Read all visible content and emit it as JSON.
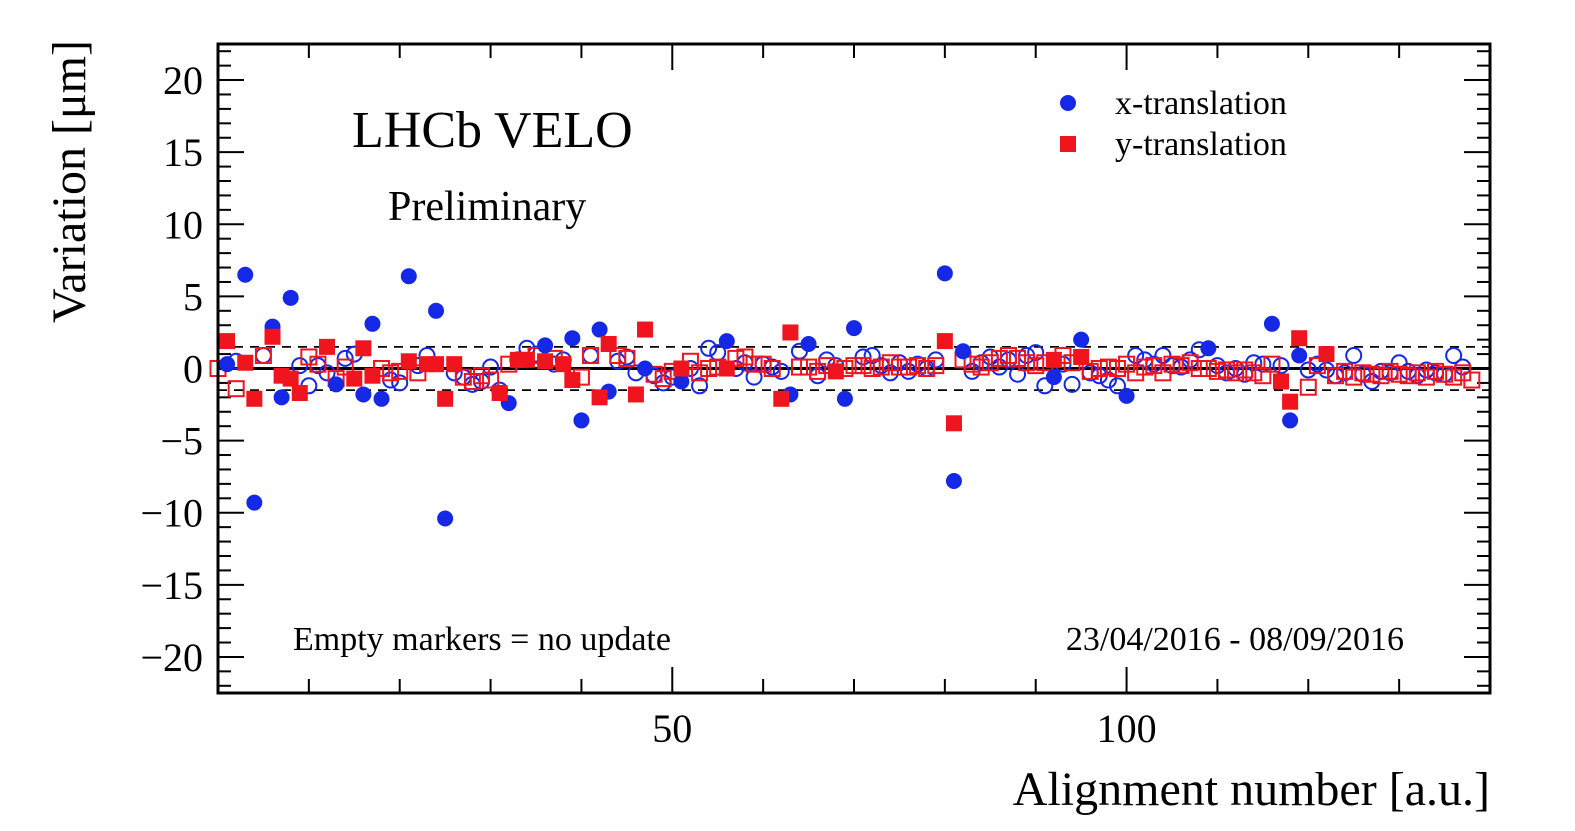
{
  "chart_data": {
    "type": "scatter",
    "title": "",
    "xlabel": "Alignment number [a.u.]",
    "ylabel": "Variation [μm]",
    "xlim": [
      0,
      140
    ],
    "ylim": [
      -22.5,
      22.5
    ],
    "x_ticks": [
      50,
      100
    ],
    "y_ticks": [
      -20,
      -15,
      -10,
      -5,
      0,
      5,
      10,
      15,
      20
    ],
    "y_tick_labels": [
      "−20",
      "−15",
      "−10",
      "−5",
      "0",
      "5",
      "10",
      "15",
      "20"
    ],
    "reference_lines": {
      "solid": [
        0
      ],
      "dashed": [
        -1.5,
        1.5
      ]
    },
    "legend": {
      "position": "top-right"
    },
    "annotations": {
      "experiment": "LHCb VELO",
      "status": "Preliminary",
      "marker_note": "Empty markers = no update",
      "date_range": "23/04/2016 - 08/09/2016"
    },
    "colors": {
      "x": "#1428e6",
      "y": "#f0141e"
    },
    "series": [
      {
        "name": "x-translation",
        "marker": "circle",
        "color": "#1428e6",
        "filled": [
          [
            1,
            0.3
          ],
          [
            3,
            6.5
          ],
          [
            4,
            -9.3
          ],
          [
            6,
            2.9
          ],
          [
            7,
            -2.0
          ],
          [
            8,
            4.9
          ],
          [
            13,
            -1.1
          ],
          [
            16,
            -1.8
          ],
          [
            17,
            3.1
          ],
          [
            18,
            -2.1
          ],
          [
            21,
            6.4
          ],
          [
            24,
            4.0
          ],
          [
            25,
            -10.4
          ],
          [
            32,
            -2.4
          ],
          [
            36,
            1.6
          ],
          [
            39,
            2.1
          ],
          [
            40,
            -3.6
          ],
          [
            42,
            2.7
          ],
          [
            43,
            -1.6
          ],
          [
            47,
            0.0
          ],
          [
            51,
            -0.9
          ],
          [
            56,
            1.9
          ],
          [
            63,
            -1.8
          ],
          [
            65,
            1.7
          ],
          [
            69,
            -2.1
          ],
          [
            70,
            2.8
          ],
          [
            80,
            6.6
          ],
          [
            81,
            -7.8
          ],
          [
            82,
            1.2
          ],
          [
            92,
            -0.6
          ],
          [
            95,
            2.0
          ],
          [
            100,
            -1.9
          ],
          [
            109,
            1.4
          ],
          [
            116,
            3.1
          ],
          [
            118,
            -3.6
          ],
          [
            119,
            0.9
          ]
        ],
        "open": [
          [
            2,
            0.5
          ],
          [
            5,
            0.9
          ],
          [
            9,
            0.2
          ],
          [
            10,
            -1.2
          ],
          [
            11,
            0.2
          ],
          [
            12,
            -0.3
          ],
          [
            14,
            0.7
          ],
          [
            15,
            1.0
          ],
          [
            19,
            -0.8
          ],
          [
            20,
            -1.0
          ],
          [
            22,
            0.2
          ],
          [
            23,
            0.9
          ],
          [
            26,
            -0.3
          ],
          [
            27,
            -0.6
          ],
          [
            28,
            -1.1
          ],
          [
            29,
            -0.9
          ],
          [
            30,
            0.1
          ],
          [
            31,
            -1.5
          ],
          [
            33,
            0.6
          ],
          [
            34,
            1.4
          ],
          [
            35,
            1.0
          ],
          [
            37,
            0.3
          ],
          [
            38,
            0.6
          ],
          [
            41,
            0.9
          ],
          [
            44,
            0.5
          ],
          [
            45,
            0.8
          ],
          [
            46,
            -0.3
          ],
          [
            48,
            -0.5
          ],
          [
            49,
            -1.0
          ],
          [
            50,
            -0.6
          ],
          [
            52,
            0.0
          ],
          [
            53,
            -1.2
          ],
          [
            54,
            1.4
          ],
          [
            55,
            1.1
          ],
          [
            57,
            0.0
          ],
          [
            58,
            0.4
          ],
          [
            59,
            -0.6
          ],
          [
            60,
            0.3
          ],
          [
            61,
            0.1
          ],
          [
            62,
            -0.2
          ],
          [
            64,
            1.2
          ],
          [
            66,
            -0.5
          ],
          [
            67,
            0.6
          ],
          [
            68,
            0.2
          ],
          [
            71,
            0.8
          ],
          [
            72,
            0.9
          ],
          [
            73,
            0.2
          ],
          [
            74,
            -0.3
          ],
          [
            75,
            0.4
          ],
          [
            76,
            -0.2
          ],
          [
            77,
            0.3
          ],
          [
            78,
            0.0
          ],
          [
            79,
            0.6
          ],
          [
            83,
            -0.2
          ],
          [
            84,
            0.4
          ],
          [
            85,
            0.8
          ],
          [
            86,
            0.1
          ],
          [
            87,
            0.6
          ],
          [
            88,
            -0.4
          ],
          [
            89,
            0.9
          ],
          [
            90,
            1.1
          ],
          [
            91,
            -1.2
          ],
          [
            93,
            0.3
          ],
          [
            94,
            -1.1
          ],
          [
            96,
            -0.3
          ],
          [
            97,
            -0.5
          ],
          [
            98,
            -0.8
          ],
          [
            99,
            -1.2
          ],
          [
            101,
            0.9
          ],
          [
            102,
            0.6
          ],
          [
            103,
            0.3
          ],
          [
            104,
            0.9
          ],
          [
            105,
            0.2
          ],
          [
            106,
            0.1
          ],
          [
            107,
            0.6
          ],
          [
            108,
            1.3
          ],
          [
            110,
            0.2
          ],
          [
            111,
            -0.3
          ],
          [
            112,
            0.0
          ],
          [
            113,
            -0.4
          ],
          [
            114,
            0.4
          ],
          [
            115,
            0.3
          ],
          [
            117,
            0.2
          ],
          [
            120,
            -0.1
          ],
          [
            121,
            0.3
          ],
          [
            122,
            -0.1
          ],
          [
            123,
            -0.5
          ],
          [
            124,
            -0.3
          ],
          [
            125,
            0.9
          ],
          [
            126,
            -0.4
          ],
          [
            127,
            -0.9
          ],
          [
            128,
            -0.2
          ],
          [
            129,
            -0.3
          ],
          [
            130,
            0.4
          ],
          [
            131,
            -0.2
          ],
          [
            132,
            -0.5
          ],
          [
            133,
            -0.1
          ],
          [
            134,
            -0.3
          ],
          [
            135,
            -0.4
          ],
          [
            136,
            0.9
          ],
          [
            137,
            0.1
          ]
        ]
      },
      {
        "name": "y-translation",
        "marker": "square",
        "color": "#f0141e",
        "filled": [
          [
            1,
            1.9
          ],
          [
            3,
            0.4
          ],
          [
            4,
            -2.1
          ],
          [
            6,
            2.2
          ],
          [
            7,
            -0.5
          ],
          [
            8,
            -0.7
          ],
          [
            9,
            -1.7
          ],
          [
            12,
            1.5
          ],
          [
            15,
            -0.7
          ],
          [
            16,
            1.4
          ],
          [
            17,
            -0.5
          ],
          [
            21,
            0.5
          ],
          [
            23,
            0.3
          ],
          [
            24,
            0.3
          ],
          [
            25,
            -2.1
          ],
          [
            26,
            0.3
          ],
          [
            31,
            -1.7
          ],
          [
            33,
            0.6
          ],
          [
            34,
            0.6
          ],
          [
            36,
            0.5
          ],
          [
            38,
            0.3
          ],
          [
            39,
            -0.8
          ],
          [
            42,
            -2.0
          ],
          [
            43,
            1.7
          ],
          [
            46,
            -1.8
          ],
          [
            47,
            2.7
          ],
          [
            51,
            0.0
          ],
          [
            56,
            0.0
          ],
          [
            62,
            -2.1
          ],
          [
            63,
            2.5
          ],
          [
            68,
            -0.2
          ],
          [
            80,
            1.9
          ],
          [
            81,
            -3.8
          ],
          [
            92,
            0.6
          ],
          [
            95,
            0.8
          ],
          [
            117,
            -0.9
          ],
          [
            118,
            -2.3
          ],
          [
            119,
            2.1
          ],
          [
            122,
            1.0
          ]
        ],
        "open": [
          [
            0,
            0.0
          ],
          [
            2,
            -1.4
          ],
          [
            5,
            0.9
          ],
          [
            10,
            0.8
          ],
          [
            11,
            0.3
          ],
          [
            13,
            -0.7
          ],
          [
            14,
            0.1
          ],
          [
            18,
            0.0
          ],
          [
            19,
            -0.3
          ],
          [
            20,
            -0.2
          ],
          [
            22,
            -0.3
          ],
          [
            27,
            -0.6
          ],
          [
            28,
            -0.9
          ],
          [
            29,
            -0.5
          ],
          [
            30,
            -0.8
          ],
          [
            32,
            0.3
          ],
          [
            35,
            0.9
          ],
          [
            37,
            0.7
          ],
          [
            40,
            -0.6
          ],
          [
            41,
            0.9
          ],
          [
            44,
            0.9
          ],
          [
            45,
            0.7
          ],
          [
            48,
            -0.4
          ],
          [
            49,
            -0.7
          ],
          [
            50,
            -0.2
          ],
          [
            52,
            0.5
          ],
          [
            53,
            -0.3
          ],
          [
            54,
            0.0
          ],
          [
            55,
            0.1
          ],
          [
            57,
            0.7
          ],
          [
            58,
            0.8
          ],
          [
            59,
            0.3
          ],
          [
            60,
            0.3
          ],
          [
            61,
            0.0
          ],
          [
            64,
            0.1
          ],
          [
            65,
            0.1
          ],
          [
            66,
            -0.2
          ],
          [
            67,
            0.2
          ],
          [
            69,
            0.0
          ],
          [
            70,
            0.2
          ],
          [
            71,
            0.2
          ],
          [
            72,
            0.0
          ],
          [
            73,
            0.1
          ],
          [
            74,
            0.4
          ],
          [
            75,
            0.1
          ],
          [
            76,
            0.1
          ],
          [
            77,
            0.2
          ],
          [
            78,
            0.0
          ],
          [
            79,
            0.2
          ],
          [
            82,
            0.6
          ],
          [
            83,
            0.3
          ],
          [
            84,
            0.1
          ],
          [
            85,
            0.4
          ],
          [
            86,
            0.7
          ],
          [
            87,
            0.9
          ],
          [
            88,
            0.7
          ],
          [
            89,
            0.4
          ],
          [
            90,
            0.2
          ],
          [
            91,
            0.4
          ],
          [
            93,
            0.9
          ],
          [
            94,
            0.4
          ],
          [
            96,
            -0.2
          ],
          [
            97,
            0.0
          ],
          [
            98,
            0.1
          ],
          [
            99,
            0.0
          ],
          [
            100,
            0.3
          ],
          [
            101,
            -0.3
          ],
          [
            102,
            0.1
          ],
          [
            103,
            0.2
          ],
          [
            104,
            -0.3
          ],
          [
            105,
            0.3
          ],
          [
            106,
            0.2
          ],
          [
            107,
            0.4
          ],
          [
            108,
            0.0
          ],
          [
            109,
            0.0
          ],
          [
            110,
            -0.2
          ],
          [
            111,
            -0.1
          ],
          [
            112,
            -0.3
          ],
          [
            113,
            -0.1
          ],
          [
            114,
            -0.3
          ],
          [
            115,
            -0.5
          ],
          [
            116,
            0.3
          ],
          [
            120,
            -1.3
          ],
          [
            121,
            0.2
          ],
          [
            123,
            -0.5
          ],
          [
            124,
            -0.2
          ],
          [
            125,
            -0.6
          ],
          [
            126,
            -0.3
          ],
          [
            127,
            -0.4
          ],
          [
            128,
            -0.5
          ],
          [
            129,
            -0.2
          ],
          [
            130,
            -0.4
          ],
          [
            131,
            -0.5
          ],
          [
            132,
            -0.3
          ],
          [
            133,
            -0.6
          ],
          [
            134,
            -0.2
          ],
          [
            135,
            -0.4
          ],
          [
            136,
            -0.6
          ],
          [
            137,
            -0.3
          ],
          [
            138,
            -0.8
          ]
        ]
      }
    ]
  }
}
